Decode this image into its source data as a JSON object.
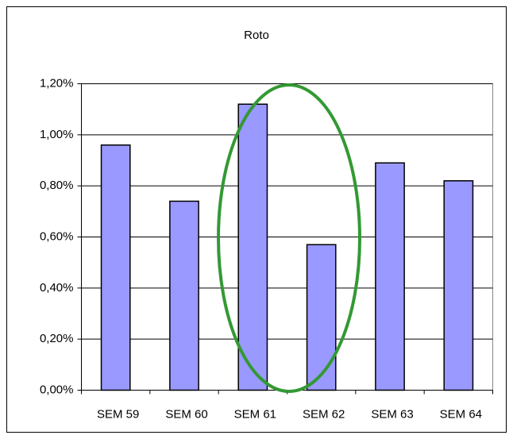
{
  "chart_data": {
    "type": "bar",
    "title": "Roto",
    "categories": [
      "SEM 59",
      "SEM 60",
      "SEM 61",
      "SEM 62",
      "SEM 63",
      "SEM 64"
    ],
    "values": [
      0.96,
      0.74,
      1.12,
      0.57,
      0.89,
      0.82
    ],
    "color": "#9999ff",
    "ylim": [
      0,
      1.2
    ],
    "yticks": [
      {
        "value": 0,
        "label": "0,00%"
      },
      {
        "value": 0.2,
        "label": "0,20%"
      },
      {
        "value": 0.4,
        "label": "0,40%"
      },
      {
        "value": 0.6,
        "label": "0,60%"
      },
      {
        "value": 0.8,
        "label": "0,80%"
      },
      {
        "value": 1.0,
        "label": "1,00%"
      },
      {
        "value": 1.2,
        "label": "1,20%"
      }
    ],
    "grid": true
  }
}
